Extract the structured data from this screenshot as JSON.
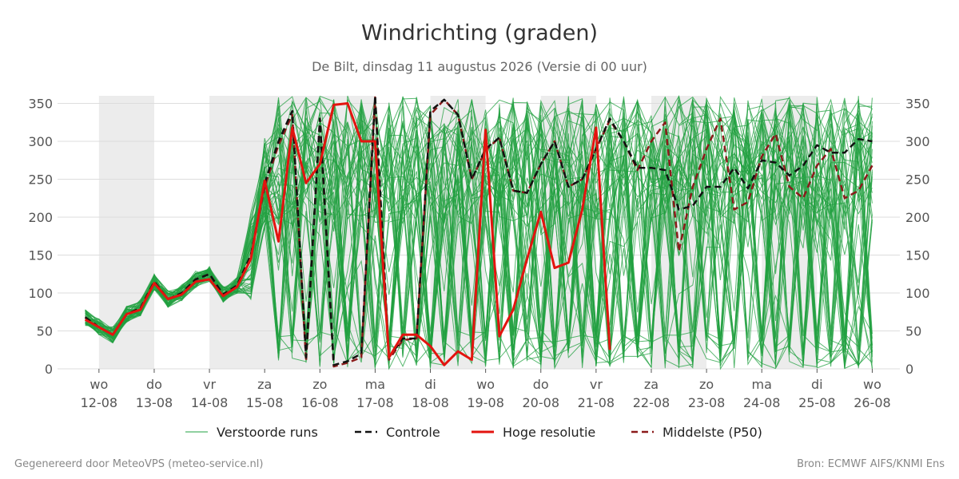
{
  "chart_data": {
    "type": "line",
    "title": "Windrichting (graden)",
    "subtitle": "De Bilt, dinsdag 11 augustus 2026 (Versie di 00 uur)",
    "ylim": [
      0,
      360
    ],
    "yticks": [
      0,
      50,
      100,
      150,
      200,
      250,
      300,
      350
    ],
    "x_start": "11-08 12:00",
    "x_end": "26-08",
    "xticks": [
      {
        "day": "wo",
        "date": "12-08"
      },
      {
        "day": "do",
        "date": "13-08"
      },
      {
        "day": "vr",
        "date": "14-08"
      },
      {
        "day": "za",
        "date": "15-08"
      },
      {
        "day": "zo",
        "date": "16-08"
      },
      {
        "day": "ma",
        "date": "17-08"
      },
      {
        "day": "di",
        "date": "18-08"
      },
      {
        "day": "wo",
        "date": "19-08"
      },
      {
        "day": "do",
        "date": "20-08"
      },
      {
        "day": "vr",
        "date": "21-08"
      },
      {
        "day": "za",
        "date": "22-08"
      },
      {
        "day": "zo",
        "date": "23-08"
      },
      {
        "day": "ma",
        "date": "24-08"
      },
      {
        "day": "di",
        "date": "25-08"
      },
      {
        "day": "wo",
        "date": "26-08"
      }
    ],
    "shaded_periods": [
      [
        "12-08",
        "13-08"
      ],
      [
        "14-08",
        "17-08"
      ],
      [
        "18-08",
        "19-08"
      ],
      [
        "20-08",
        "21-08"
      ],
      [
        "22-08",
        "23-08"
      ],
      [
        "24-08",
        "25-08"
      ]
    ],
    "grid": true,
    "legend_position": "bottom",
    "perturbed_runs_count": 50,
    "perturbed_runs_note": "50 ensemble members, values spread between 0 and 360 after 15-08",
    "series": [
      {
        "name": "Controle",
        "color": "#111111",
        "style": "dashed",
        "x": [
          "11-08 18:00",
          "12-08 00:00",
          "12-08 06:00",
          "12-08 12:00",
          "12-08 18:00",
          "13-08 00:00",
          "13-08 06:00",
          "13-08 12:00",
          "13-08 18:00",
          "14-08 00:00",
          "14-08 06:00",
          "14-08 12:00",
          "14-08 18:00",
          "15-08 00:00",
          "15-08 06:00",
          "15-08 12:00",
          "15-08 18:00",
          "16-08 00:00",
          "16-08 06:00",
          "16-08 12:00",
          "16-08 18:00",
          "17-08 00:00",
          "17-08 06:00",
          "17-08 12:00",
          "17-08 18:00",
          "18-08 00:00",
          "18-08 06:00",
          "18-08 12:00",
          "18-08 18:00",
          "19-08 00:00",
          "19-08 06:00",
          "19-08 12:00",
          "19-08 18:00",
          "20-08 00:00",
          "20-08 06:00",
          "20-08 12:00",
          "20-08 18:00",
          "21-08 00:00",
          "21-08 06:00",
          "21-08 12:00",
          "21-08 18:00",
          "22-08 00:00",
          "22-08 06:00",
          "22-08 12:00",
          "22-08 18:00",
          "23-08 00:00",
          "23-08 06:00",
          "23-08 12:00",
          "23-08 18:00",
          "24-08 00:00",
          "24-08 06:00",
          "24-08 12:00",
          "24-08 18:00",
          "25-08 00:00",
          "25-08 06:00",
          "25-08 12:00",
          "25-08 18:00",
          "26-08 00:00"
        ],
        "values": [
          68,
          55,
          45,
          72,
          80,
          115,
          92,
          100,
          118,
          125,
          98,
          110,
          150,
          245,
          300,
          340,
          15,
          330,
          5,
          10,
          20,
          360,
          15,
          40,
          40,
          340,
          355,
          335,
          250,
          290,
          305,
          235,
          232,
          270,
          300,
          240,
          250,
          290,
          330,
          300,
          265,
          265,
          262,
          210,
          215,
          240,
          240,
          265,
          238,
          275,
          272,
          255,
          268,
          295,
          285,
          285,
          303,
          300
        ]
      },
      {
        "name": "Hoge resolutie",
        "color": "#e3140f",
        "style": "solid",
        "x": [
          "11-08 18:00",
          "12-08 00:00",
          "12-08 06:00",
          "12-08 12:00",
          "12-08 18:00",
          "13-08 00:00",
          "13-08 06:00",
          "13-08 12:00",
          "13-08 18:00",
          "14-08 00:00",
          "14-08 06:00",
          "14-08 12:00",
          "14-08 18:00",
          "15-08 00:00",
          "15-08 06:00",
          "15-08 12:00",
          "15-08 18:00",
          "16-08 00:00",
          "16-08 06:00",
          "16-08 12:00",
          "16-08 18:00",
          "17-08 00:00",
          "17-08 06:00",
          "17-08 12:00",
          "17-08 18:00",
          "18-08 00:00",
          "18-08 06:00",
          "18-08 12:00",
          "18-08 18:00",
          "19-08 00:00",
          "19-08 06:00",
          "19-08 12:00",
          "19-08 18:00",
          "20-08 00:00",
          "20-08 06:00",
          "20-08 12:00",
          "20-08 18:00",
          "21-08 00:00",
          "21-08 06:00"
        ],
        "values": [
          65,
          55,
          45,
          72,
          78,
          113,
          92,
          98,
          115,
          118,
          96,
          108,
          145,
          248,
          168,
          318,
          245,
          270,
          348,
          350,
          300,
          300,
          15,
          45,
          45,
          30,
          5,
          23,
          12,
          315,
          43,
          78,
          145,
          207,
          133,
          140,
          210,
          318,
          25
        ]
      },
      {
        "name": "Middelste (P50)",
        "color": "#8b1a1a",
        "style": "dashed",
        "x": [
          "11-08 18:00",
          "12-08 00:00",
          "12-08 06:00",
          "12-08 12:00",
          "12-08 18:00",
          "13-08 00:00",
          "13-08 06:00",
          "13-08 12:00",
          "13-08 18:00",
          "14-08 00:00",
          "14-08 06:00",
          "14-08 12:00",
          "14-08 18:00",
          "15-08 00:00",
          "15-08 06:00",
          "15-08 12:00",
          "15-08 18:00",
          "16-08 00:00",
          "16-08 06:00",
          "16-08 12:00",
          "16-08 18:00",
          "17-08 00:00",
          "17-08 06:00",
          "17-08 12:00",
          "17-08 18:00",
          "18-08 00:00",
          "18-08 06:00",
          "18-08 12:00",
          "18-08 18:00",
          "19-08 00:00",
          "19-08 06:00",
          "19-08 12:00",
          "19-08 18:00",
          "20-08 00:00",
          "20-08 06:00",
          "20-08 12:00",
          "20-08 18:00",
          "21-08 00:00",
          "21-08 06:00",
          "21-08 12:00",
          "21-08 18:00",
          "22-08 00:00",
          "22-08 06:00",
          "22-08 12:00",
          "22-08 18:00",
          "23-08 00:00",
          "23-08 06:00",
          "23-08 12:00",
          "23-08 18:00",
          "24-08 00:00",
          "24-08 06:00",
          "24-08 12:00",
          "24-08 18:00",
          "25-08 00:00",
          "25-08 06:00",
          "25-08 12:00",
          "25-08 18:00",
          "26-08 00:00"
        ],
        "values": [
          68,
          55,
          45,
          72,
          80,
          115,
          92,
          100,
          118,
          125,
          98,
          110,
          150,
          240,
          295,
          335,
          10,
          330,
          3,
          8,
          15,
          358,
          12,
          38,
          40,
          335,
          355,
          335,
          250,
          288,
          305,
          235,
          232,
          270,
          300,
          240,
          250,
          290,
          328,
          300,
          262,
          300,
          325,
          155,
          240,
          290,
          330,
          210,
          220,
          280,
          310,
          240,
          225,
          268,
          290,
          225,
          235,
          268
        ]
      }
    ],
    "legend": [
      "Verstoorde runs",
      "Controle",
      "Hoge resolutie",
      "Middelste (P50)"
    ],
    "colors": {
      "ensemble": "#22a040",
      "controle": "#111111",
      "hoge_resolutie": "#e3140f",
      "p50": "#8b1a1a",
      "shading": "#ececec",
      "grid": "#dddddd"
    }
  },
  "footer": {
    "left": "Gegenereerd door MeteoVPS (meteo-service.nl)",
    "right": "Bron: ECMWF AIFS/KNMI Ens"
  }
}
